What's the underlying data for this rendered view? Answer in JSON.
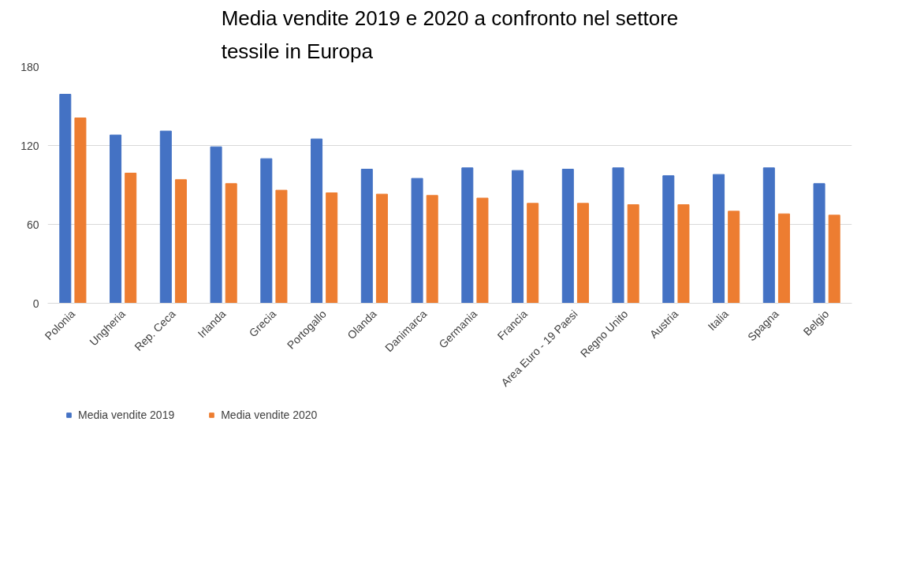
{
  "chart_data": {
    "type": "bar",
    "title": "Media vendite 2019 e 2020 a confronto nel settore tessile in Europa",
    "categories": [
      "Polonia",
      "Ungheria",
      "Rep. Ceca",
      "Irlanda",
      "Grecia",
      "Portogallo",
      "Olanda",
      "Danimarca",
      "Germania",
      "Francia",
      "Area Euro - 19 Paesi",
      "Regno Unito",
      "Austria",
      "Italia",
      "Spagna",
      "Belgio"
    ],
    "series": [
      {
        "name": "Media vendite 2019",
        "color": "#4472c4",
        "values": [
          159,
          128,
          131,
          119,
          110,
          125,
          102,
          95,
          103,
          101,
          102,
          103,
          97,
          98,
          103,
          91
        ]
      },
      {
        "name": "Media vendite 2020",
        "color": "#ed7d31",
        "values": [
          141,
          99,
          94,
          91,
          86,
          84,
          83,
          82,
          80,
          76,
          76,
          75,
          75,
          70,
          68,
          67
        ]
      }
    ],
    "ylim": [
      0,
      180
    ],
    "yticks": [
      0,
      60,
      120,
      180
    ],
    "grid": "y",
    "legend": "bottom left"
  }
}
